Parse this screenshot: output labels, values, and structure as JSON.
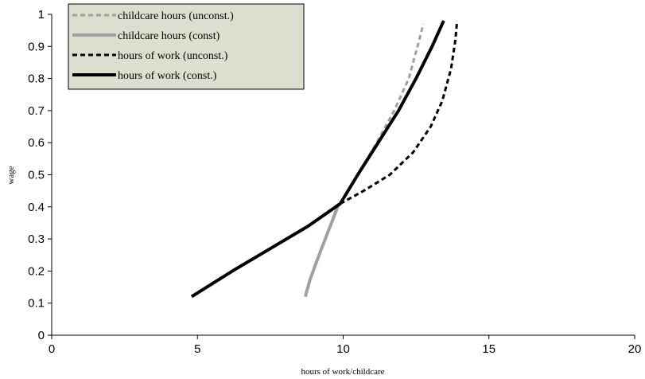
{
  "chart_data": {
    "type": "line",
    "title": "",
    "xlabel": "hours of work/childcare",
    "ylabel": "wage",
    "xlim": [
      0,
      20
    ],
    "ylim": [
      0,
      1
    ],
    "x_ticks": [
      "0",
      "5",
      "10",
      "15",
      "20"
    ],
    "y_ticks": [
      "0",
      "0.1",
      "0.2",
      "0.3",
      "0.4",
      "0.5",
      "0.6",
      "0.7",
      "0.8",
      "0.9",
      "1"
    ],
    "grid": false,
    "legend_position": "top-left",
    "series": [
      {
        "name": "childcare hours (unconst.)",
        "color": "#a0a0a0",
        "style": "dashed",
        "points": [
          [
            9.9,
            0.41
          ],
          [
            10.5,
            0.5
          ],
          [
            11.15,
            0.6
          ],
          [
            11.75,
            0.7
          ],
          [
            12.25,
            0.8
          ],
          [
            12.55,
            0.9
          ],
          [
            12.75,
            0.97
          ]
        ]
      },
      {
        "name": "childcare hours (const)",
        "color": "#a0a0a0",
        "style": "solid",
        "points": [
          [
            8.7,
            0.12
          ],
          [
            8.85,
            0.17
          ],
          [
            9.05,
            0.22
          ],
          [
            9.3,
            0.28
          ],
          [
            9.6,
            0.35
          ],
          [
            9.85,
            0.41
          ]
        ]
      },
      {
        "name": "hours of work (unconst.)",
        "color": "#000000",
        "style": "dashed",
        "points": [
          [
            9.9,
            0.41
          ],
          [
            10.7,
            0.45
          ],
          [
            11.6,
            0.5
          ],
          [
            12.4,
            0.57
          ],
          [
            13.0,
            0.65
          ],
          [
            13.4,
            0.73
          ],
          [
            13.7,
            0.83
          ],
          [
            13.85,
            0.92
          ],
          [
            13.9,
            0.97
          ]
        ]
      },
      {
        "name": "hours of work (const.)",
        "color": "#000000",
        "style": "solid",
        "points": [
          [
            4.8,
            0.12
          ],
          [
            6.2,
            0.2
          ],
          [
            7.5,
            0.27
          ],
          [
            8.8,
            0.34
          ],
          [
            9.9,
            0.41
          ],
          [
            10.5,
            0.5
          ],
          [
            11.2,
            0.6
          ],
          [
            11.9,
            0.7
          ],
          [
            12.5,
            0.8
          ],
          [
            13.05,
            0.9
          ],
          [
            13.45,
            0.98
          ]
        ]
      }
    ]
  }
}
